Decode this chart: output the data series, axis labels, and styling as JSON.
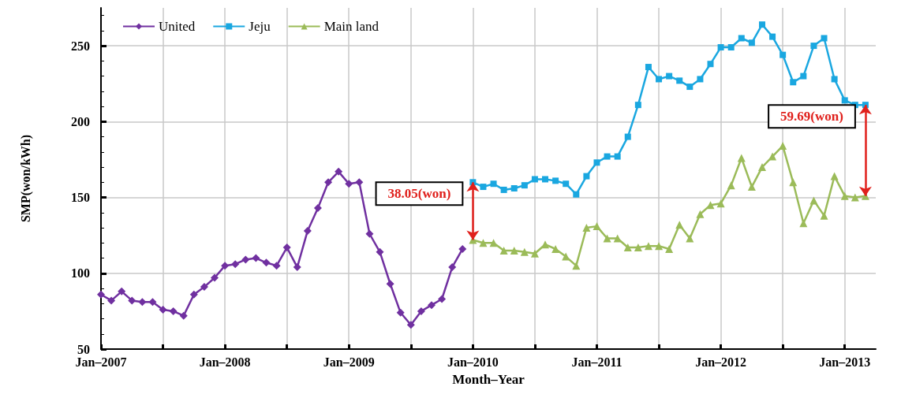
{
  "chart_data": {
    "type": "line",
    "xlabel": "Month–Year",
    "ylabel": "SMP(won/kWh)",
    "xlim": [
      "2007-01",
      "2013-04"
    ],
    "xticks": [
      {
        "value": "2007-01",
        "label": "Jan–2007"
      },
      {
        "value": "2007-07",
        "label": null
      },
      {
        "value": "2008-01",
        "label": "Jan–2008"
      },
      {
        "value": "2008-07",
        "label": null
      },
      {
        "value": "2009-01",
        "label": "Jan–2009"
      },
      {
        "value": "2009-07",
        "label": null
      },
      {
        "value": "2010-01",
        "label": "Jan–2010"
      },
      {
        "value": "2010-07",
        "label": null
      },
      {
        "value": "2011-01",
        "label": "Jan–2011"
      },
      {
        "value": "2011-07",
        "label": null
      },
      {
        "value": "2012-01",
        "label": "Jan–2012"
      },
      {
        "value": "2012-07",
        "label": null
      },
      {
        "value": "2013-01",
        "label": "Jan–2013"
      }
    ],
    "ylim": [
      50,
      275
    ],
    "yticks": [
      50,
      100,
      150,
      200,
      250
    ],
    "grid": true,
    "legend": "top left",
    "series": [
      {
        "name": "United",
        "color": "#7030a0",
        "marker": "diamond",
        "x": [
          "2007-01",
          "2007-02",
          "2007-03",
          "2007-04",
          "2007-05",
          "2007-06",
          "2007-07",
          "2007-08",
          "2007-09",
          "2007-10",
          "2007-11",
          "2007-12",
          "2008-01",
          "2008-02",
          "2008-03",
          "2008-04",
          "2008-05",
          "2008-06",
          "2008-07",
          "2008-08",
          "2008-09",
          "2008-10",
          "2008-11",
          "2008-12",
          "2009-01",
          "2009-02",
          "2009-03",
          "2009-04",
          "2009-05",
          "2009-06",
          "2009-07",
          "2009-08",
          "2009-09",
          "2009-10",
          "2009-11",
          "2009-12"
        ],
        "values": [
          86,
          82,
          88,
          82,
          81,
          81,
          76,
          75,
          72,
          86,
          91,
          97,
          105,
          106,
          109,
          110,
          107,
          105,
          117,
          104,
          128,
          143,
          160,
          167,
          159,
          160,
          126,
          114,
          93,
          74,
          66,
          75,
          79,
          83,
          104,
          116
        ]
      },
      {
        "name": "Jeju",
        "color": "#1aa7e0",
        "marker": "square",
        "x": [
          "2010-01",
          "2010-02",
          "2010-03",
          "2010-04",
          "2010-05",
          "2010-06",
          "2010-07",
          "2010-08",
          "2010-09",
          "2010-10",
          "2010-11",
          "2010-12",
          "2011-01",
          "2011-02",
          "2011-03",
          "2011-04",
          "2011-05",
          "2011-06",
          "2011-07",
          "2011-08",
          "2011-09",
          "2011-10",
          "2011-11",
          "2011-12",
          "2012-01",
          "2012-02",
          "2012-03",
          "2012-04",
          "2012-05",
          "2012-06",
          "2012-07",
          "2012-08",
          "2012-09",
          "2012-10",
          "2012-11",
          "2012-12",
          "2013-01",
          "2013-02",
          "2013-03"
        ],
        "values": [
          160,
          157,
          159,
          155,
          156,
          158,
          162,
          162,
          161,
          159,
          152,
          164,
          173,
          177,
          177,
          190,
          211,
          236,
          228,
          230,
          227,
          223,
          228,
          238,
          249,
          249,
          255,
          252,
          264,
          256,
          244,
          226,
          230,
          250,
          255,
          228,
          214,
          211,
          211
        ]
      },
      {
        "name": "Main land",
        "color": "#9bbb59",
        "marker": "triangle",
        "x": [
          "2010-01",
          "2010-02",
          "2010-03",
          "2010-04",
          "2010-05",
          "2010-06",
          "2010-07",
          "2010-08",
          "2010-09",
          "2010-10",
          "2010-11",
          "2010-12",
          "2011-01",
          "2011-02",
          "2011-03",
          "2011-04",
          "2011-05",
          "2011-06",
          "2011-07",
          "2011-08",
          "2011-09",
          "2011-10",
          "2011-11",
          "2011-12",
          "2012-01",
          "2012-02",
          "2012-03",
          "2012-04",
          "2012-05",
          "2012-06",
          "2012-07",
          "2012-08",
          "2012-09",
          "2012-10",
          "2012-11",
          "2012-12",
          "2013-01",
          "2013-02",
          "2013-03"
        ],
        "values": [
          122,
          120,
          120,
          115,
          115,
          114,
          113,
          119,
          116,
          111,
          105,
          130,
          131,
          123,
          123,
          117,
          117,
          118,
          118,
          116,
          132,
          123,
          139,
          145,
          146,
          158,
          176,
          157,
          170,
          177,
          184,
          160,
          133,
          148,
          138,
          164,
          151,
          150,
          151
        ]
      }
    ],
    "annotations": [
      {
        "text": "38.05(won)",
        "x": "2010-01",
        "y": 160
      },
      {
        "text": "59.69(won)",
        "x": "2013-03",
        "y": 211
      }
    ]
  }
}
